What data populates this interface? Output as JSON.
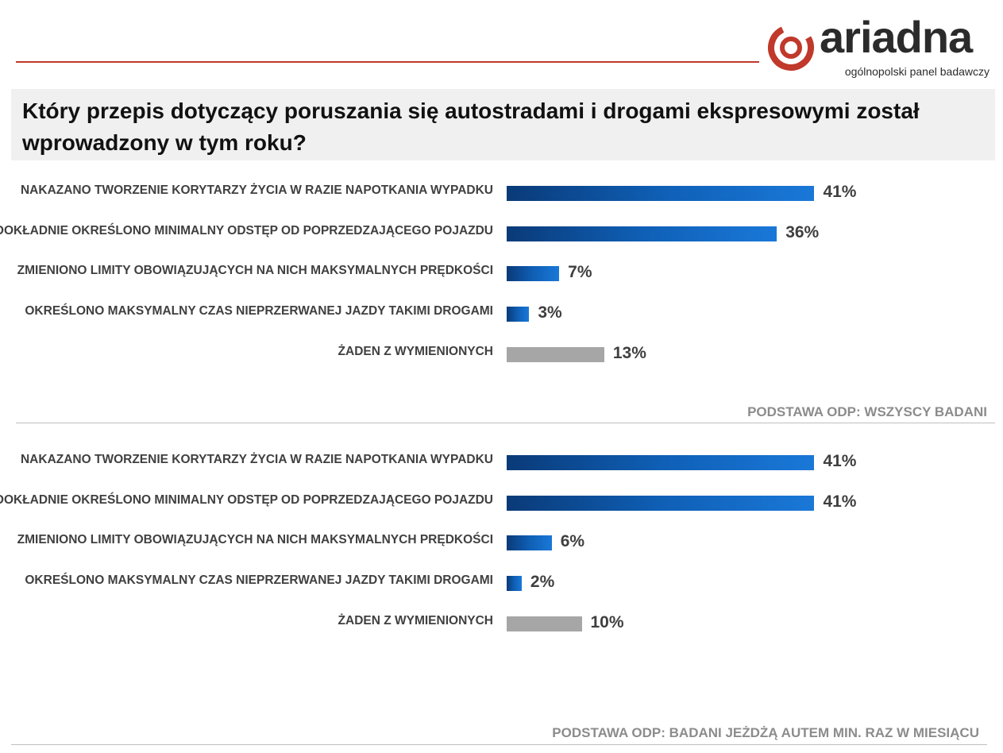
{
  "logo": {
    "brand": "ariadna",
    "tagline": "ogólnopolski panel badawczy"
  },
  "title": "Który przepis dotyczący poruszania się autostradami i drogami ekspresowymi został wprowadzony w tym roku?",
  "colors": {
    "accent_red": "#c0392b",
    "bar_blue_dark": "#0a3a78",
    "bar_blue_light": "#1a78d8",
    "bar_grey": "#a6a6a6"
  },
  "chart_data": [
    {
      "type": "bar",
      "orientation": "horizontal",
      "categories": [
        "NAKAZANO TWORZENIE KORYTARZY ŻYCIA W RAZIE NAPOTKANIA WYPADKU",
        "DOKŁADNIE OKREŚLONO MINIMALNY ODSTĘP OD POPRZEDZAJĄCEGO POJAZDU",
        "ZMIENIONO LIMITY OBOWIĄZUJĄCYCH NA NICH MAKSYMALNYCH PRĘDKOŚCI",
        "OKREŚLONO MAKSYMALNY CZAS NIEPRZERWANEJ JAZDY TAKIMI DROGAMI",
        "ŻADEN Z WYMIENIONYCH"
      ],
      "values": [
        41,
        36,
        7,
        3,
        13
      ],
      "labels": [
        "41%",
        "36%",
        "7%",
        "3%",
        "13%"
      ],
      "bar_style": [
        "blue",
        "blue",
        "blue",
        "blue",
        "grey"
      ],
      "base_note": "PODSTAWA  ODP: WSZYSCY BADANI"
    },
    {
      "type": "bar",
      "orientation": "horizontal",
      "categories": [
        "NAKAZANO TWORZENIE KORYTARZY ŻYCIA W RAZIE NAPOTKANIA WYPADKU",
        "DOKŁADNIE OKREŚLONO MINIMALNY ODSTĘP OD POPRZEDZAJĄCEGO POJAZDU",
        "ZMIENIONO LIMITY OBOWIĄZUJĄCYCH NA NICH MAKSYMALNYCH PRĘDKOŚCI",
        "OKREŚLONO MAKSYMALNY CZAS NIEPRZERWANEJ JAZDY TAKIMI DROGAMI",
        "ŻADEN Z WYMIENIONYCH"
      ],
      "values": [
        41,
        41,
        6,
        2,
        10
      ],
      "labels": [
        "41%",
        "41%",
        "6%",
        "2%",
        "10%"
      ],
      "bar_style": [
        "blue",
        "blue",
        "blue",
        "blue",
        "grey"
      ],
      "base_note": "PODSTAWA  ODP: BADANI JEŻDŻĄ AUTEM  MIN. RAZ W MIESIĄCU"
    }
  ]
}
